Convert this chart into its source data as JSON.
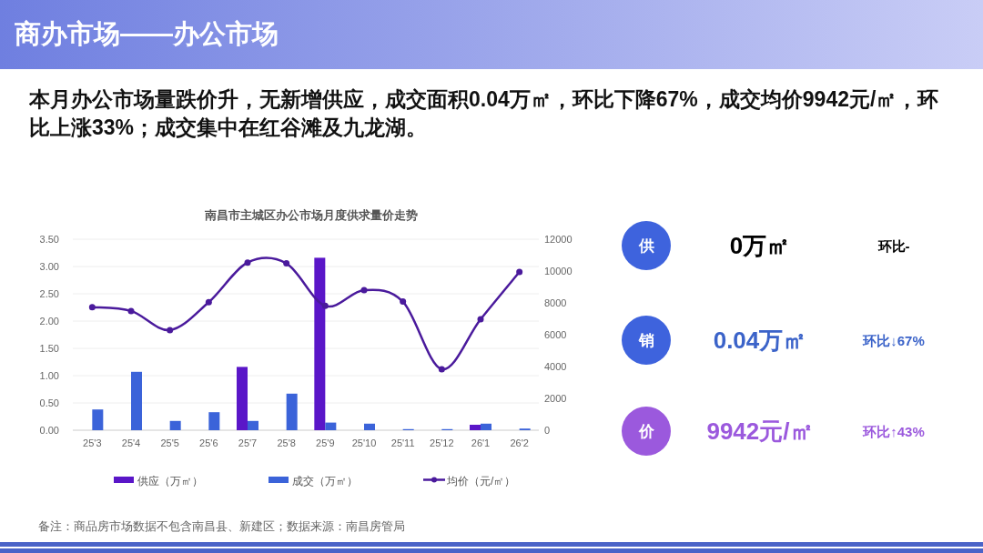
{
  "chart_data": [
    {
      "type": "bar",
      "title": "南昌市主城区办公市场月度供求量价走势",
      "subtitle": "本月办公市场量跌价升，无新增供应，成交面积0.04万㎡，环比下降67%，成交均价9942元/㎡，环比上涨33%；成交集中在红谷滩及九龙湖。",
      "annotations": [
        "商办市场——办公市场",
        "备注：商品房市场数据不包含南昌县、新建区；数据来源：南昌房管局"
      ],
      "categories": [
        "25'3",
        "25'4",
        "25'5",
        "25'6",
        "25'7",
        "25'8",
        "25'9",
        "25'10",
        "25'11",
        "25'12",
        "26'1",
        "26'2"
      ],
      "series": [
        {
          "name": "供应（万㎡）",
          "type": "bar",
          "color": "#5a16c8",
          "values": [
            0,
            0,
            0,
            0,
            1.16,
            0,
            3.16,
            0,
            0,
            0,
            0.1,
            0
          ]
        },
        {
          "name": "成交（万㎡）",
          "type": "bar",
          "color": "#3b63d9",
          "values": [
            0.38,
            1.07,
            0.17,
            0.33,
            0.17,
            0.67,
            0.14,
            0.12,
            0.02,
            0.02,
            0.12,
            0.03
          ]
        },
        {
          "name": "均价（元/㎡）",
          "type": "line",
          "axis": "y2",
          "color": "#4a1a9c",
          "marker": "circle",
          "values": [
            7730,
            7490,
            6290,
            8040,
            10530,
            10480,
            7810,
            8800,
            8080,
            3830,
            6970,
            9942
          ]
        }
      ],
      "ylim": [
        0,
        3.5
      ],
      "yticks": [
        {
          "value": 0,
          "label": "0.00"
        },
        {
          "value": 0.5,
          "label": "0.50"
        },
        {
          "value": 1,
          "label": "1.00"
        },
        {
          "value": 1.5,
          "label": "1.50"
        },
        {
          "value": 2,
          "label": "2.00"
        },
        {
          "value": 2.5,
          "label": "2.50"
        },
        {
          "value": 3,
          "label": "3.00"
        },
        {
          "value": 3.5,
          "label": "3.50"
        }
      ],
      "y2lim": [
        0,
        12000
      ],
      "y2ticks": [
        0,
        2000,
        4000,
        6000,
        8000,
        10000,
        12000
      ],
      "grid": "y",
      "legend": "bottom"
    },
    {
      "type": "other",
      "annotations": [
        "供",
        "0万㎡",
        "环比-",
        "销",
        "0.04万㎡",
        "环比↓67%",
        "价",
        "9942元/㎡",
        "环比↑43%"
      ]
    }
  ]
}
